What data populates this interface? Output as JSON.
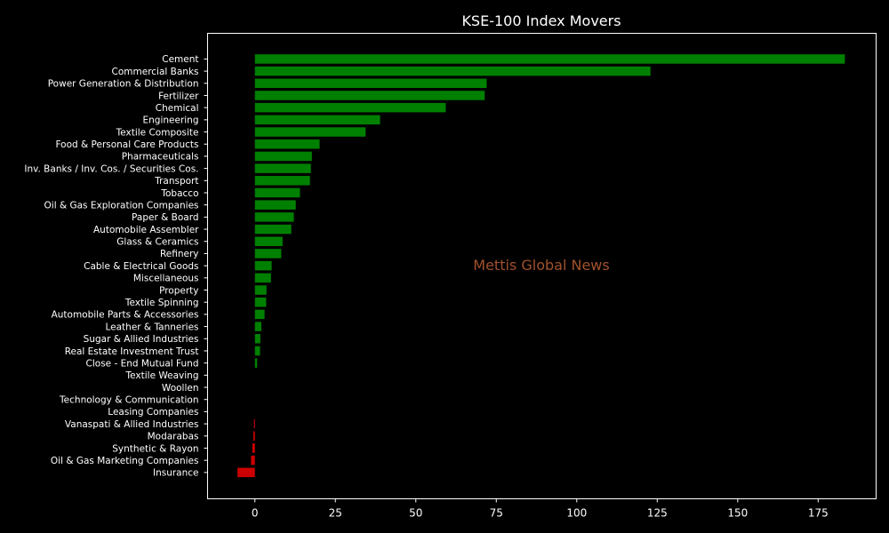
{
  "chart_data": {
    "type": "bar",
    "orientation": "horizontal",
    "title": "KSE-100 Index Movers",
    "watermark": "Mettis Global News",
    "xlabel": "",
    "ylabel": "",
    "xlim": [
      -14.7,
      193.0
    ],
    "xticks": [
      0,
      25,
      50,
      75,
      100,
      125,
      150,
      175
    ],
    "grid": false,
    "legend": "none",
    "colors": {
      "background": "#000000",
      "positive": "#008000",
      "negative": "#cc0000",
      "text": "#ffffff",
      "axes": "#ffffff",
      "watermark": "#a0522d"
    },
    "categories": [
      "Cement",
      "Commercial Banks",
      "Power Generation & Distribution",
      "Fertilizer",
      "Chemical",
      "Engineering",
      "Textile Composite",
      "Food & Personal Care Products",
      "Pharmaceuticals",
      "Inv. Banks / Inv. Cos. / Securities Cos.",
      "Transport",
      "Tobacco",
      "Oil & Gas Exploration Companies",
      "Paper & Board",
      "Automobile Assembler",
      "Glass & Ceramics",
      "Refinery",
      "Cable & Electrical Goods",
      "Miscellaneous",
      "Property",
      "Textile Spinning",
      "Automobile Parts & Accessories",
      "Leather & Tanneries",
      "Sugar & Allied Industries",
      "Real Estate Investment Trust",
      "Close - End Mutual Fund",
      "Textile Weaving",
      "Woollen",
      "Technology & Communication",
      "Leasing Companies",
      "Vanaspati & Allied Industries",
      "Modarabas",
      "Synthetic & Rayon",
      "Oil & Gas Marketing Companies",
      "Insurance"
    ],
    "values": [
      183.3,
      122.9,
      72.0,
      71.4,
      59.3,
      38.9,
      34.4,
      20.1,
      17.7,
      17.4,
      17.1,
      14.0,
      12.7,
      12.1,
      11.3,
      8.6,
      8.2,
      5.2,
      5.0,
      3.6,
      3.5,
      3.0,
      2.0,
      1.7,
      1.6,
      0.7,
      0,
      0,
      0,
      0,
      -0.3,
      -0.5,
      -0.8,
      -1.2,
      -5.4
    ]
  }
}
